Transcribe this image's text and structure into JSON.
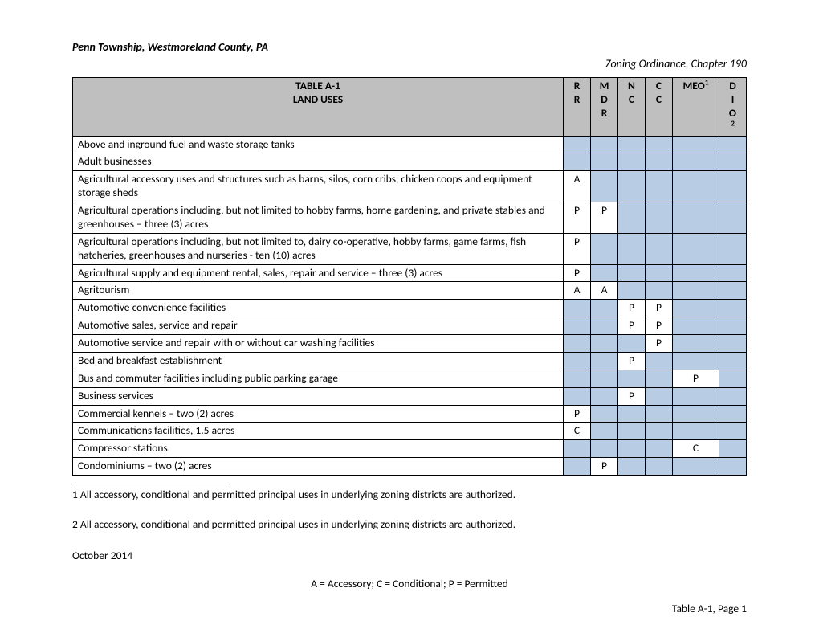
{
  "header": {
    "left": "Penn Township, Westmoreland County, PA",
    "right": "Zoning Ordinance, Chapter 190"
  },
  "table": {
    "title_line1": "TABLE A-1",
    "title_line2": "LAND USES",
    "columns": [
      {
        "label": "R\nR",
        "sup": ""
      },
      {
        "label": "M\nD\nR",
        "sup": ""
      },
      {
        "label": "N\nC",
        "sup": ""
      },
      {
        "label": "C\nC",
        "sup": ""
      },
      {
        "label": "MEO",
        "sup": "1"
      },
      {
        "label": "D\nI\nO",
        "sup": "2"
      }
    ],
    "col_widths": [
      "34",
      "34",
      "34",
      "34",
      "58",
      "34"
    ],
    "header_bg": "#bfbfbf",
    "shade_bg": "#b8cce4",
    "border_color": "#000000",
    "rows": [
      {
        "use": "Above and inground fuel and waste storage tanks",
        "cells": [
          "",
          "",
          "",
          "",
          "",
          ""
        ]
      },
      {
        "use": "Adult businesses",
        "cells": [
          "",
          "",
          "",
          "",
          "",
          ""
        ]
      },
      {
        "use": "Agricultural accessory uses and structures such as barns, silos, corn cribs, chicken coops and equipment storage sheds",
        "cells": [
          "A",
          "",
          "",
          "",
          "",
          ""
        ]
      },
      {
        "use": "Agricultural operations including, but not limited to hobby farms, home gardening, and private stables and greenhouses – three (3) acres",
        "cells": [
          "P",
          "P",
          "",
          "",
          "",
          ""
        ]
      },
      {
        "use": "Agricultural operations including, but not limited to, dairy co-operative, hobby farms, game farms, fish hatcheries, greenhouses and nurseries -  ten (10) acres",
        "cells": [
          "P",
          "",
          "",
          "",
          "",
          ""
        ]
      },
      {
        "use": "Agricultural supply and equipment rental, sales, repair and service – three (3) acres",
        "cells": [
          "P",
          "",
          "",
          "",
          "",
          ""
        ]
      },
      {
        "use": "Agritourism",
        "cells": [
          "A",
          "A",
          "",
          "",
          "",
          ""
        ]
      },
      {
        "use": "Automotive convenience facilities",
        "cells": [
          "",
          "",
          "P",
          "P",
          "",
          ""
        ]
      },
      {
        "use": "Automotive sales, service and repair",
        "cells": [
          "",
          "",
          "P",
          "P",
          "",
          ""
        ]
      },
      {
        "use": "Automotive service and repair with or without car washing facilities",
        "cells": [
          "",
          "",
          "",
          "P",
          "",
          ""
        ]
      },
      {
        "use": "Bed and breakfast establishment",
        "cells": [
          "",
          "",
          "P",
          "",
          "",
          ""
        ]
      },
      {
        "use": "Bus and commuter facilities including public parking garage",
        "cells": [
          "",
          "",
          "",
          "",
          "P",
          ""
        ]
      },
      {
        "use": "Business services",
        "cells": [
          "",
          "",
          "P",
          "",
          "",
          ""
        ]
      },
      {
        "use": "Commercial kennels – two (2) acres",
        "cells": [
          "P",
          "",
          "",
          "",
          "",
          ""
        ]
      },
      {
        "use": "Communications facilities, 1.5 acres",
        "cells": [
          "C",
          "",
          "",
          "",
          "",
          ""
        ]
      },
      {
        "use": "Compressor stations",
        "cells": [
          "",
          "",
          "",
          "",
          "C",
          ""
        ]
      },
      {
        "use": "Condominiums – two (2) acres",
        "cells": [
          "",
          "P",
          "",
          "",
          "",
          ""
        ]
      }
    ]
  },
  "footnotes": {
    "f1": "1 All accessory, conditional and permitted principal uses in underlying zoning districts are authorized.",
    "f2": "2 All accessory, conditional and permitted principal uses in underlying zoning districts are authorized."
  },
  "date": "October 2014",
  "legend": "A = Accessory; C = Conditional; P = Permitted",
  "page_label": "Table A-1, Page 1"
}
